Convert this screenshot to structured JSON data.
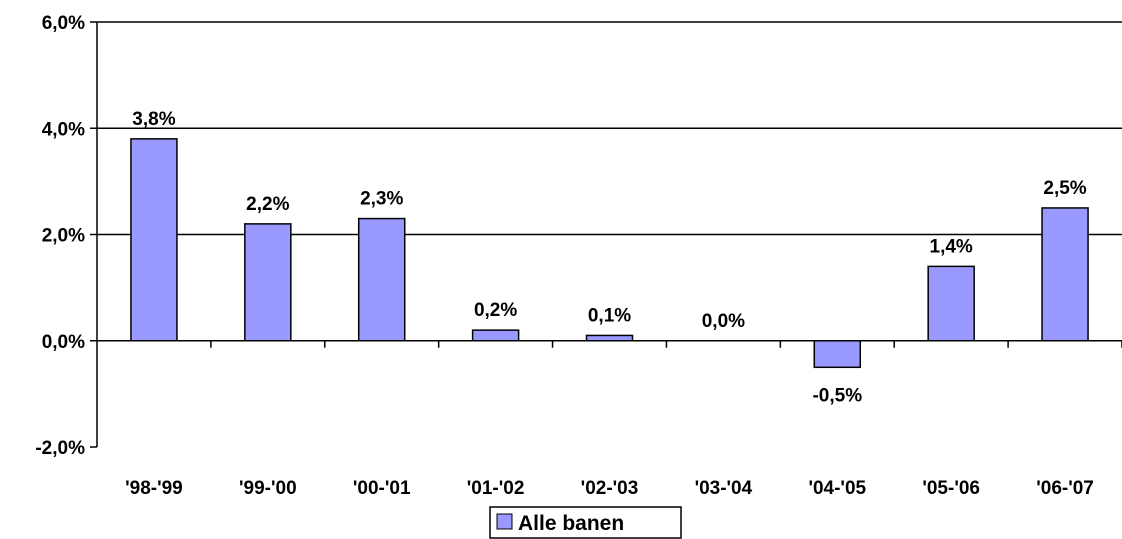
{
  "chart_data": {
    "type": "bar",
    "categories": [
      "'98-'99",
      "'99-'00",
      "'00-'01",
      "'01-'02",
      "'02-'03",
      "'03-'04",
      "'04-'05",
      "'05-'06",
      "'06-'07"
    ],
    "series": [
      {
        "name": "Alle banen",
        "values": [
          3.8,
          2.2,
          2.3,
          0.2,
          0.1,
          0.0,
          -0.5,
          1.4,
          2.5
        ],
        "data_labels": [
          "3,8%",
          "2,2%",
          "2,3%",
          "0,2%",
          "0,1%",
          "0,0%",
          "-0,5%",
          "1,4%",
          "2,5%"
        ],
        "color": "#9999ff"
      }
    ],
    "ylim": [
      -2.0,
      6.0
    ],
    "yticks": [
      -2.0,
      0.0,
      2.0,
      4.0,
      6.0
    ],
    "ytick_labels": [
      "-2,0%",
      "0,0%",
      "2,0%",
      "4,0%",
      "6,0%"
    ],
    "grid": true,
    "legend_placement": "bottom-center",
    "title": "",
    "xlabel": "",
    "ylabel": ""
  }
}
